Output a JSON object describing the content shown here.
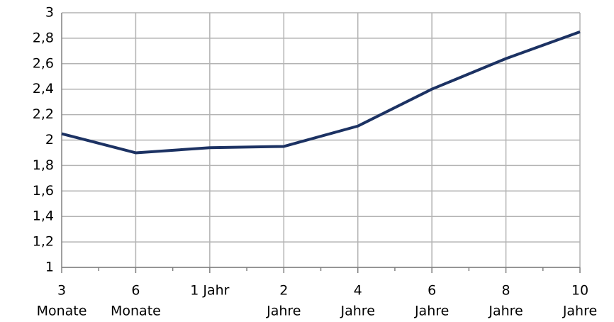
{
  "chart_data": {
    "type": "line",
    "categories": [
      [
        "3",
        "Monate"
      ],
      [
        "6",
        "Monate"
      ],
      [
        "1 Jahr"
      ],
      [
        "2",
        "Jahre"
      ],
      [
        "4",
        "Jahre"
      ],
      [
        "6",
        "Jahre"
      ],
      [
        "8",
        "Jahre"
      ],
      [
        "10",
        "Jahre"
      ]
    ],
    "series": [
      {
        "color": "#1c3263",
        "values": [
          2.05,
          1.9,
          1.94,
          1.95,
          2.11,
          2.4,
          2.64,
          2.85
        ]
      }
    ],
    "ylim": [
      1,
      3
    ],
    "yticks": [
      1,
      {
        "value": 1.2,
        "label": "1,2"
      },
      {
        "value": 1.4,
        "label": "1,4"
      },
      {
        "value": 1.6,
        "label": "1,6"
      },
      {
        "value": 1.8,
        "label": "1,8"
      },
      2,
      {
        "value": 2.2,
        "label": "2,2"
      },
      {
        "value": 2.4,
        "label": "2,4"
      },
      {
        "value": 2.6,
        "label": "2,6"
      },
      {
        "value": 2.8,
        "label": "2,8"
      },
      3
    ],
    "grid": true
  }
}
